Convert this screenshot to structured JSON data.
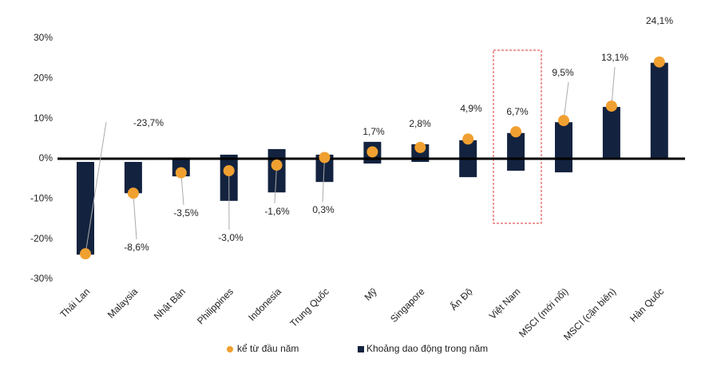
{
  "chart_data": {
    "type": "range-bar-dot",
    "categories": [
      "Thái Lan",
      "Malaysia",
      "Nhật Bản",
      "Philippines",
      "Indonesia",
      "Trung Quốc",
      "Mỹ",
      "Singapore",
      "Ấn Độ",
      "Việt Nam",
      "MSCI (mới nổi)",
      "MSCI (cận biên)",
      "Hàn Quốc"
    ],
    "series": [
      {
        "name": "kể từ đầu năm",
        "color": "#f0a030",
        "values": [
          -23.7,
          -8.6,
          -3.5,
          -3.0,
          -1.6,
          0.3,
          1.7,
          2.8,
          4.9,
          6.7,
          9.5,
          13.1,
          24.1
        ],
        "value_labels": [
          "-23,7%",
          "-8,6%",
          "-3,5%",
          "-3,0%",
          "-1,6%",
          "0,3%",
          "1,7%",
          "2,8%",
          "4,9%",
          "6,7%",
          "9,5%",
          "13,1%",
          "24,1%"
        ]
      },
      {
        "name": "Khoảng dao động trong năm",
        "color": "#13233f",
        "low": [
          -23.9,
          -8.6,
          -4.4,
          -10.5,
          -8.4,
          -5.8,
          -1.2,
          -0.8,
          -4.6,
          -3.0,
          -3.4,
          0,
          0
        ],
        "high": [
          -0.8,
          -0.8,
          0,
          1.0,
          2.4,
          1.0,
          4.2,
          3.6,
          4.6,
          6.4,
          9.1,
          12.9,
          23.9
        ]
      }
    ],
    "ylim": [
      -30,
      30
    ],
    "yticks": [
      {
        "value": -30,
        "label": "-30%"
      },
      {
        "value": -20,
        "label": "-20%"
      },
      {
        "value": -10,
        "label": "-10%"
      },
      {
        "value": 0,
        "label": "0%"
      },
      {
        "value": 10,
        "label": "10%"
      },
      {
        "value": 20,
        "label": "20%"
      },
      {
        "value": 30,
        "label": "30%"
      }
    ]
  }
}
